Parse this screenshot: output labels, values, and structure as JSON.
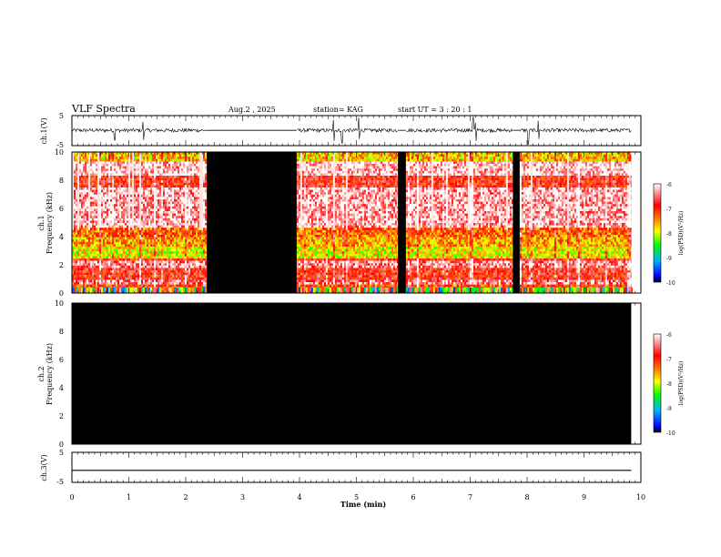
{
  "header": {
    "title": "VLF  Spectra",
    "date": "Aug.2  , 2025",
    "station": "station= KAG",
    "start": "start  UT  =   3  : 20 : 1"
  },
  "chart_data": [
    {
      "id": "ch1-waveform",
      "type": "line",
      "ylabel": "ch.1(V)",
      "ylim": [
        -5,
        5
      ],
      "y_ticks": [
        "5",
        "-5"
      ],
      "xlim": [
        0,
        10
      ],
      "gaps_min": [
        [
          2.37,
          3.95
        ],
        [
          5.73,
          5.87
        ],
        [
          7.75,
          7.87
        ]
      ],
      "spike_minutes": [
        0.75,
        1.25,
        4.6,
        4.75,
        5.05,
        5.78,
        7.05,
        7.1,
        8.02,
        8.2
      ],
      "baseline_v": 0.1,
      "noise_amplitude_v": 1.2,
      "end_min": 9.83
    },
    {
      "id": "ch1-spectrogram",
      "type": "heatmap",
      "ylabel": "ch.1\nFrequency (kHz)",
      "ylim": [
        0,
        10
      ],
      "y_ticks": [
        "0",
        "2",
        "4",
        "6",
        "8",
        "10"
      ],
      "xlim": [
        0,
        10
      ],
      "data_blocks_min": [
        [
          0,
          2.37
        ],
        [
          3.95,
          5.73
        ],
        [
          5.87,
          7.75
        ],
        [
          7.87,
          9.83
        ]
      ],
      "nodata_blocks_min": [
        [
          2.37,
          3.95
        ],
        [
          5.73,
          5.87
        ],
        [
          7.75,
          7.87
        ]
      ],
      "band_levels": [
        {
          "f_lo": 0,
          "f_hi": 0.3,
          "level": -8.3
        },
        {
          "f_lo": 0.3,
          "f_hi": 0.7,
          "level": -7.2
        },
        {
          "f_lo": 0.7,
          "f_hi": 1.0,
          "level": -6.5
        },
        {
          "f_lo": 1.0,
          "f_hi": 1.9,
          "level": -6.9
        },
        {
          "f_lo": 1.9,
          "f_hi": 2.3,
          "level": -6.4
        },
        {
          "f_lo": 2.3,
          "f_hi": 2.6,
          "level": -7.0
        },
        {
          "f_lo": 2.6,
          "f_hi": 3.3,
          "level": -7.9
        },
        {
          "f_lo": 3.3,
          "f_hi": 4.0,
          "level": -7.6
        },
        {
          "f_lo": 4.0,
          "f_hi": 4.8,
          "level": -7.3
        },
        {
          "f_lo": 4.8,
          "f_hi": 7.5,
          "level": -6.3
        },
        {
          "f_lo": 7.5,
          "f_hi": 8.4,
          "level": -6.9
        },
        {
          "f_lo": 8.4,
          "f_hi": 9.4,
          "level": -6.2
        },
        {
          "f_lo": 9.4,
          "f_hi": 10,
          "level": -7.7
        }
      ],
      "colorbar": {
        "label": "log(PSD)(V²/Hz)",
        "range": [
          -10,
          -6
        ],
        "ticks": [
          "-6",
          "-7",
          "-8",
          "-9",
          "-10"
        ],
        "stops": [
          "#000000",
          "#0000ff",
          "#00b0ff",
          "#00ff00",
          "#ffff00",
          "#ff8000",
          "#ff0000",
          "#ffffff"
        ]
      }
    },
    {
      "id": "ch2-spectrogram",
      "type": "heatmap",
      "ylabel": "ch.2\nFrequency (kHz)",
      "ylim": [
        0,
        10
      ],
      "y_ticks": [
        "0",
        "2",
        "4",
        "6",
        "8",
        "10"
      ],
      "xlim": [
        0,
        10
      ],
      "data_blocks_min": [],
      "nodata_blocks_min": [
        [
          0,
          9.83
        ]
      ],
      "colorbar": {
        "label": "log(PSD)(V²/Hz)",
        "range": [
          -10,
          -6
        ],
        "ticks": [
          "-6",
          "-7",
          "-8",
          "-9",
          "-10"
        ],
        "stops": [
          "#000000",
          "#0000ff",
          "#00b0ff",
          "#00ff00",
          "#ffff00",
          "#ff8000",
          "#ff0000",
          "#ffffff"
        ]
      }
    },
    {
      "id": "ch3-waveform",
      "type": "line",
      "ylabel": "ch.3(V)",
      "ylim": [
        -5,
        5
      ],
      "y_ticks": [
        "5",
        "-5"
      ],
      "xlim": [
        0,
        10
      ],
      "baseline_v": -1.0,
      "end_min": 9.83,
      "xlabel": "Time  (min)",
      "x_ticks": [
        "0",
        "1",
        "2",
        "3",
        "4",
        "5",
        "6",
        "7",
        "8",
        "9",
        "10"
      ]
    }
  ]
}
